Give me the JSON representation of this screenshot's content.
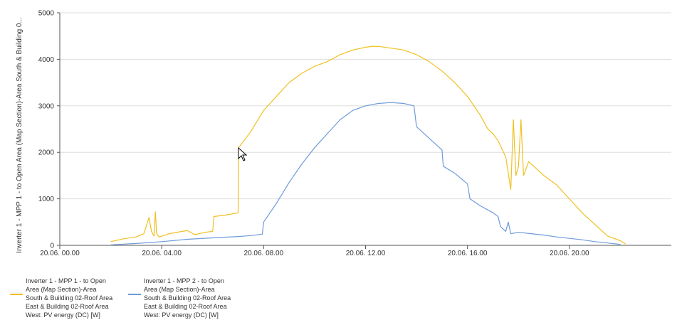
{
  "chart_data": {
    "type": "line",
    "ylabel": "Inverter 1 - MPP 1 - to Open Area (Map Section)-Area South & Building 0...",
    "ylim": [
      0,
      5000
    ],
    "yticks": [
      "0",
      "1000",
      "2000",
      "3000",
      "4000",
      "5000"
    ],
    "xlim": [
      0,
      24
    ],
    "xticks": [
      {
        "t": 0,
        "label": "20.06. 00.00"
      },
      {
        "t": 4,
        "label": "20.06. 04.00"
      },
      {
        "t": 8,
        "label": "20.06. 08.00"
      },
      {
        "t": 12,
        "label": "20.06. 12.00"
      },
      {
        "t": 16,
        "label": "20.06. 16.00"
      },
      {
        "t": 20,
        "label": "20.06. 20.00"
      }
    ],
    "grid": "horizontal",
    "legend_position": "bottom-left",
    "series": [
      {
        "name": "Inverter 1 - MPP 1 - to Open Area (Map Section)-Area South & Building 02-Roof Area East & Building 02-Roof Area West: PV energy (DC)  [W]",
        "color": "#f0c020",
        "points": [
          [
            2.0,
            80
          ],
          [
            2.5,
            140
          ],
          [
            3.0,
            180
          ],
          [
            3.3,
            250
          ],
          [
            3.5,
            600
          ],
          [
            3.6,
            300
          ],
          [
            3.7,
            200
          ],
          [
            3.75,
            720
          ],
          [
            3.8,
            250
          ],
          [
            3.9,
            180
          ],
          [
            4.3,
            250
          ],
          [
            5.0,
            320
          ],
          [
            5.3,
            230
          ],
          [
            5.7,
            280
          ],
          [
            6.0,
            300
          ],
          [
            6.05,
            620
          ],
          [
            6.5,
            650
          ],
          [
            6.9,
            690
          ],
          [
            7.0,
            700
          ],
          [
            7.02,
            2100
          ],
          [
            7.5,
            2450
          ],
          [
            8.0,
            2900
          ],
          [
            8.5,
            3200
          ],
          [
            9.0,
            3500
          ],
          [
            9.5,
            3700
          ],
          [
            10.0,
            3850
          ],
          [
            10.5,
            3950
          ],
          [
            11.0,
            4100
          ],
          [
            11.5,
            4200
          ],
          [
            12.0,
            4260
          ],
          [
            12.3,
            4280
          ],
          [
            12.6,
            4270
          ],
          [
            13.0,
            4240
          ],
          [
            13.5,
            4200
          ],
          [
            14.0,
            4100
          ],
          [
            14.5,
            3950
          ],
          [
            15.0,
            3750
          ],
          [
            15.5,
            3500
          ],
          [
            16.0,
            3200
          ],
          [
            16.5,
            2800
          ],
          [
            16.8,
            2500
          ],
          [
            17.0,
            2400
          ],
          [
            17.2,
            2250
          ],
          [
            17.5,
            1900
          ],
          [
            17.7,
            1200
          ],
          [
            17.8,
            2700
          ],
          [
            17.9,
            1500
          ],
          [
            18.0,
            1700
          ],
          [
            18.1,
            2700
          ],
          [
            18.2,
            1500
          ],
          [
            18.4,
            1800
          ],
          [
            18.6,
            1700
          ],
          [
            19.0,
            1500
          ],
          [
            19.5,
            1300
          ],
          [
            20.0,
            1000
          ],
          [
            20.5,
            700
          ],
          [
            21.0,
            450
          ],
          [
            21.5,
            200
          ],
          [
            22.0,
            100
          ],
          [
            22.2,
            30
          ]
        ]
      },
      {
        "name": "Inverter 1 - MPP 2 - to Open Area (Map Section)-Area South & Building 02-Roof Area East & Building 02-Roof Area West: PV energy (DC)  [W]",
        "color": "#6f9bd9",
        "points": [
          [
            2.0,
            10
          ],
          [
            3.0,
            40
          ],
          [
            4.0,
            80
          ],
          [
            5.0,
            130
          ],
          [
            6.0,
            160
          ],
          [
            6.3,
            170
          ],
          [
            7.0,
            190
          ],
          [
            7.5,
            210
          ],
          [
            7.95,
            240
          ],
          [
            8.0,
            500
          ],
          [
            8.5,
            900
          ],
          [
            9.0,
            1350
          ],
          [
            9.5,
            1750
          ],
          [
            10.0,
            2100
          ],
          [
            10.5,
            2400
          ],
          [
            11.0,
            2700
          ],
          [
            11.5,
            2900
          ],
          [
            12.0,
            3000
          ],
          [
            12.5,
            3050
          ],
          [
            13.0,
            3070
          ],
          [
            13.5,
            3050
          ],
          [
            13.9,
            3000
          ],
          [
            14.0,
            2550
          ],
          [
            14.5,
            2300
          ],
          [
            15.0,
            2050
          ],
          [
            15.05,
            1700
          ],
          [
            15.5,
            1550
          ],
          [
            16.0,
            1320
          ],
          [
            16.1,
            1000
          ],
          [
            16.5,
            850
          ],
          [
            17.0,
            700
          ],
          [
            17.2,
            620
          ],
          [
            17.3,
            400
          ],
          [
            17.5,
            300
          ],
          [
            17.6,
            500
          ],
          [
            17.7,
            250
          ],
          [
            18.0,
            280
          ],
          [
            18.5,
            250
          ],
          [
            19.0,
            220
          ],
          [
            19.5,
            180
          ],
          [
            20.0,
            150
          ],
          [
            20.5,
            120
          ],
          [
            21.0,
            80
          ],
          [
            21.5,
            50
          ],
          [
            22.0,
            20
          ]
        ]
      }
    ]
  },
  "legend": [
    {
      "label": "Inverter 1 - MPP 1 - to Open Area (Map Section)-Area South & Building 02-Roof Area East & Building 02-Roof Area West: PV energy (DC)  [W]"
    },
    {
      "label": "Inverter 1 - MPP 2 - to Open Area (Map Section)-Area South & Building 02-Roof Area East & Building 02-Roof Area West: PV energy (DC)  [W]"
    }
  ]
}
